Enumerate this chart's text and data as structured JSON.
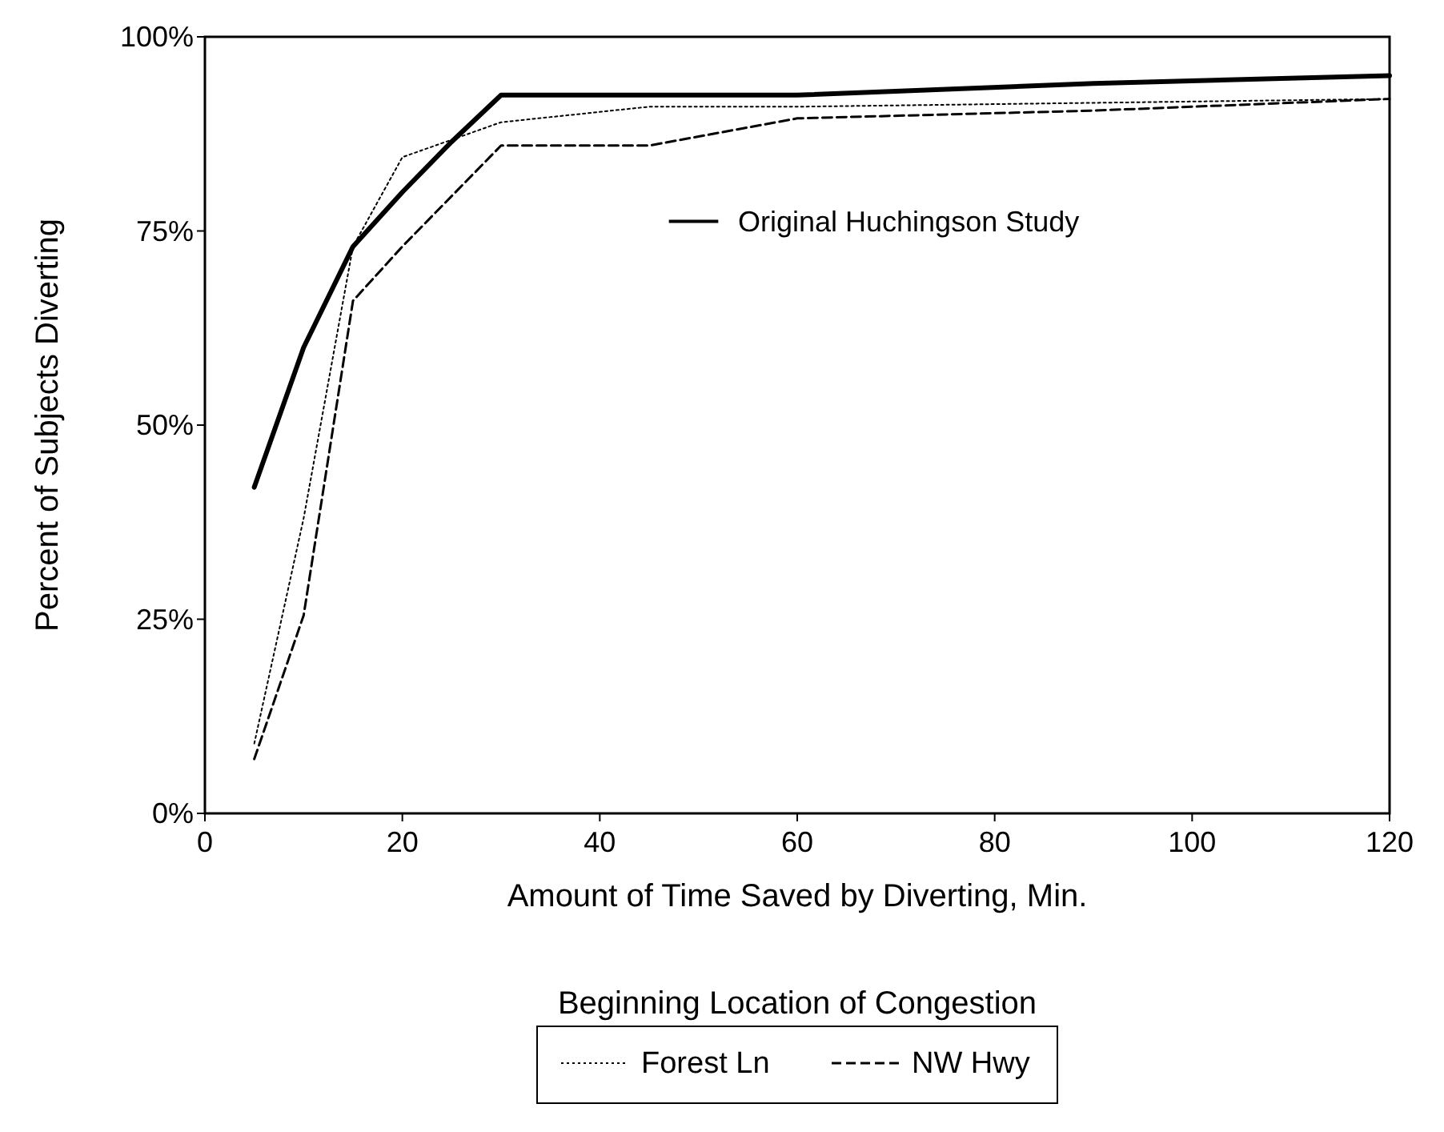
{
  "chart_data": {
    "type": "line",
    "xlabel": "Amount of Time Saved by Diverting, Min.",
    "ylabel": "Percent of Subjects Diverting",
    "legend_title": "Beginning Location of Congestion",
    "legend": "bottom",
    "xlim": [
      0,
      120
    ],
    "xticks": [
      0,
      20,
      40,
      60,
      80,
      100,
      120
    ],
    "ylim": [
      0,
      100
    ],
    "yticks": [
      {
        "value": 0,
        "label": "0%"
      },
      {
        "value": 25,
        "label": "25%"
      },
      {
        "value": 50,
        "label": "50%"
      },
      {
        "value": 75,
        "label": "75%"
      },
      {
        "value": 100,
        "label": "100%"
      }
    ],
    "grid": false,
    "marker": "none",
    "series": [
      {
        "name": "Original Huchingson Study",
        "color": "#000000",
        "line_style": "solid",
        "x": [
          5,
          10,
          15,
          20,
          25,
          30,
          60,
          90,
          120
        ],
        "values": [
          42,
          60,
          73,
          80,
          86.5,
          92.5,
          92.5,
          94,
          95
        ]
      },
      {
        "name": "Forest Ln",
        "color": "#000000",
        "line_style": "dotted",
        "x": [
          5,
          10,
          15,
          20,
          30,
          45,
          60,
          90,
          120
        ],
        "values": [
          9,
          38,
          73,
          84.5,
          89,
          91,
          91,
          91.5,
          92
        ]
      },
      {
        "name": "NW Hwy",
        "color": "#000000",
        "line_style": "dashed",
        "x": [
          5,
          10,
          15,
          20,
          30,
          45,
          60,
          90,
          120
        ],
        "values": [
          7,
          25.5,
          66,
          73,
          86,
          86,
          89.5,
          90.5,
          92
        ]
      }
    ]
  }
}
